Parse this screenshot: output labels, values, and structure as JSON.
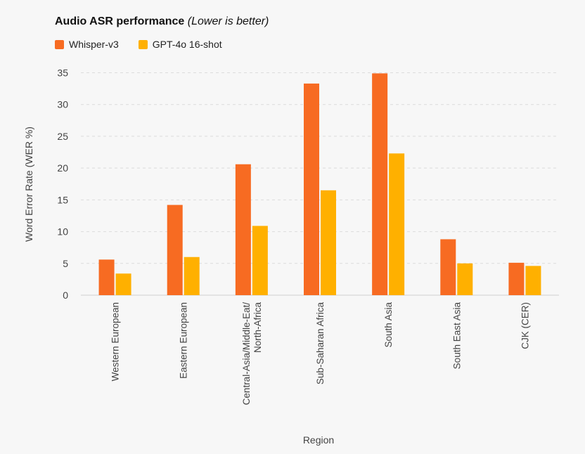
{
  "chart_data": {
    "type": "bar",
    "title": "Audio ASR performance",
    "subtitle": "(Lower is better)",
    "xlabel": "Region",
    "ylabel": "Word Error Rate (WER %)",
    "ylim": [
      0,
      35
    ],
    "yticks": [
      0,
      5,
      10,
      15,
      20,
      25,
      30,
      35
    ],
    "grid": true,
    "legend_position": "top-left",
    "categories": [
      [
        "Western European"
      ],
      [
        "Eastern European"
      ],
      [
        "Central-Asia/Middle-Eat/",
        "North-Africa"
      ],
      [
        "Sub-Saharan Africa"
      ],
      [
        "South Asia"
      ],
      [
        "South East Asia"
      ],
      [
        "CJK (CER)"
      ]
    ],
    "series": [
      {
        "name": "Whisper-v3",
        "color": "#f76b22",
        "values": [
          5.6,
          14.2,
          20.6,
          33.3,
          34.9,
          8.8,
          5.1
        ]
      },
      {
        "name": "GPT-4o 16-shot",
        "color": "#ffb000",
        "values": [
          3.4,
          6.0,
          10.9,
          16.5,
          22.3,
          5.0,
          4.6
        ]
      }
    ]
  }
}
